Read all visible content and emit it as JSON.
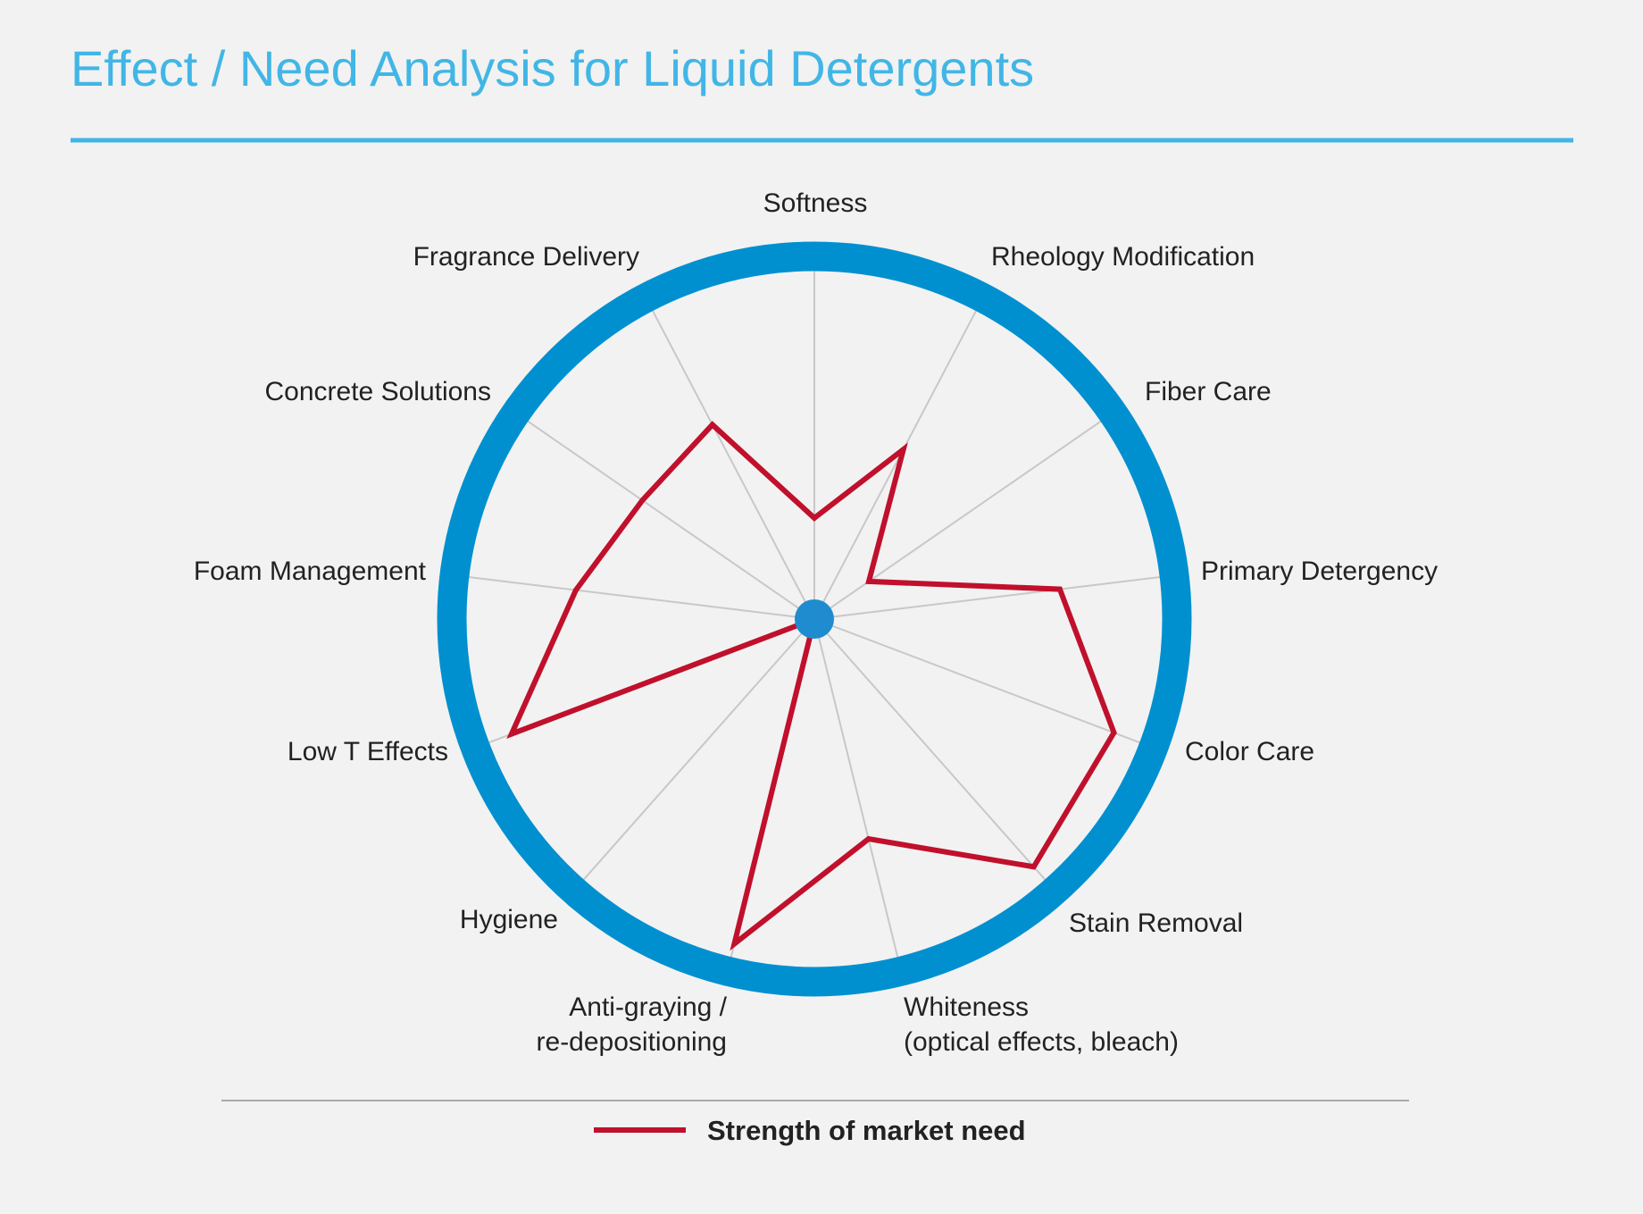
{
  "colors": {
    "background": "#f2f2f2",
    "title": "#41b6e6",
    "rule": "#41b6e6",
    "outer_ring": "#0090d0",
    "center_dot": "#1e8ccf",
    "spoke": "#c8c8c8",
    "series": "#c0102c",
    "legend_rule": "#aaaaaa"
  },
  "chart_data": {
    "type": "radar",
    "title": "Effect / Need Analysis for Liquid Detergents",
    "categories": [
      [
        "Softness"
      ],
      [
        "Rheology Modification"
      ],
      [
        "Fiber Care"
      ],
      [
        "Primary Detergency"
      ],
      [
        "Color Care"
      ],
      [
        "Stain Removal"
      ],
      [
        "Whiteness",
        "(optical effects, bleach)"
      ],
      [
        "Anti-graying /",
        "re-depositioning"
      ],
      [
        "Hygiene"
      ],
      [
        "Low T Effects"
      ],
      [
        "Foam Management"
      ],
      [
        "Concrete Solutions"
      ],
      [
        "Fragrance Delivery"
      ]
    ],
    "series": [
      {
        "name": "Strength of market need",
        "values": [
          0.29,
          0.55,
          0.19,
          0.71,
          0.92,
          0.95,
          0.65,
          0.96,
          0.0,
          0.93,
          0.69,
          0.6,
          0.63
        ]
      }
    ],
    "range": [
      0,
      1
    ],
    "legend": "bottom-center",
    "grid": "spokes"
  }
}
